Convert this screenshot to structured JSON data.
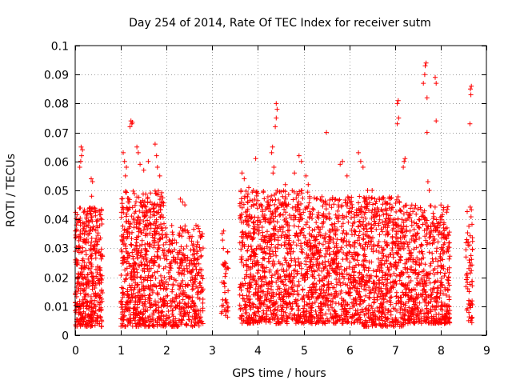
{
  "chart_data": {
    "type": "scatter",
    "title": "Day 254 of 2014, Rate Of TEC Index for receiver sutm",
    "xlabel": "GPS time / hours",
    "ylabel": "ROTI / TECUs",
    "xlim": [
      0,
      9
    ],
    "ylim": [
      0,
      0.1
    ],
    "xticks": [
      0,
      1,
      2,
      3,
      4,
      5,
      6,
      7,
      8,
      9
    ],
    "xtick_labels": [
      "0",
      "1",
      "2",
      "3",
      "4",
      "5",
      "6",
      "7",
      "8",
      "9"
    ],
    "yticks": [
      0,
      0.01,
      0.02,
      0.03,
      0.04,
      0.05,
      0.06,
      0.07,
      0.08,
      0.09,
      0.1
    ],
    "ytick_labels": [
      "0",
      "0.01",
      "0.02",
      "0.03",
      "0.04",
      "0.05",
      "0.06",
      "0.07",
      "0.08",
      "0.09",
      "0.1"
    ],
    "grid": true,
    "legend": false,
    "marker": "+",
    "marker_color": "#ff0000",
    "dense_clusters": [
      {
        "x_range": [
          0.0,
          0.6
        ],
        "y_range": [
          0.003,
          0.045
        ],
        "count": 420
      },
      {
        "x_range": [
          1.0,
          1.95
        ],
        "y_range": [
          0.003,
          0.05
        ],
        "count": 650
      },
      {
        "x_range": [
          1.95,
          2.8
        ],
        "y_range": [
          0.003,
          0.038
        ],
        "count": 380
      },
      {
        "x_range": [
          3.2,
          3.35
        ],
        "y_range": [
          0.006,
          0.036
        ],
        "count": 40
      },
      {
        "x_range": [
          3.6,
          5.1
        ],
        "y_range": [
          0.004,
          0.05
        ],
        "count": 900
      },
      {
        "x_range": [
          5.1,
          6.3
        ],
        "y_range": [
          0.004,
          0.048
        ],
        "count": 700
      },
      {
        "x_range": [
          6.3,
          7.2
        ],
        "y_range": [
          0.003,
          0.048
        ],
        "count": 560
      },
      {
        "x_range": [
          7.2,
          8.2
        ],
        "y_range": [
          0.004,
          0.045
        ],
        "count": 560
      },
      {
        "x_range": [
          8.55,
          8.7
        ],
        "y_range": [
          0.004,
          0.045
        ],
        "count": 60
      }
    ],
    "sparse_points": [
      [
        0.1,
        0.058
      ],
      [
        0.12,
        0.06
      ],
      [
        0.14,
        0.062
      ],
      [
        0.16,
        0.064
      ],
      [
        0.13,
        0.065
      ],
      [
        0.35,
        0.054
      ],
      [
        0.38,
        0.053
      ],
      [
        0.36,
        0.048
      ],
      [
        1.05,
        0.063
      ],
      [
        1.08,
        0.06
      ],
      [
        1.12,
        0.058
      ],
      [
        1.1,
        0.055
      ],
      [
        1.2,
        0.072
      ],
      [
        1.22,
        0.074
      ],
      [
        1.24,
        0.073
      ],
      [
        1.25,
        0.0735
      ],
      [
        1.35,
        0.065
      ],
      [
        1.38,
        0.063
      ],
      [
        1.42,
        0.059
      ],
      [
        1.5,
        0.057
      ],
      [
        1.6,
        0.06
      ],
      [
        1.75,
        0.066
      ],
      [
        1.78,
        0.062
      ],
      [
        1.8,
        0.058
      ],
      [
        1.85,
        0.055
      ],
      [
        2.3,
        0.047
      ],
      [
        2.35,
        0.046
      ],
      [
        2.4,
        0.045
      ],
      [
        3.25,
        0.036
      ],
      [
        3.65,
        0.056
      ],
      [
        3.7,
        0.054
      ],
      [
        3.8,
        0.051
      ],
      [
        3.9,
        0.05
      ],
      [
        3.95,
        0.061
      ],
      [
        4.0,
        0.049
      ],
      [
        4.3,
        0.063
      ],
      [
        4.32,
        0.065
      ],
      [
        4.35,
        0.058
      ],
      [
        4.33,
        0.056
      ],
      [
        4.38,
        0.072
      ],
      [
        4.4,
        0.075
      ],
      [
        4.4,
        0.08
      ],
      [
        4.42,
        0.078
      ],
      [
        4.6,
        0.052
      ],
      [
        4.8,
        0.056
      ],
      [
        4.9,
        0.062
      ],
      [
        4.95,
        0.06
      ],
      [
        5.05,
        0.055
      ],
      [
        5.1,
        0.052
      ],
      [
        5.5,
        0.07
      ],
      [
        5.8,
        0.059
      ],
      [
        5.85,
        0.06
      ],
      [
        5.95,
        0.055
      ],
      [
        6.2,
        0.063
      ],
      [
        6.25,
        0.06
      ],
      [
        6.3,
        0.058
      ],
      [
        6.4,
        0.05
      ],
      [
        6.5,
        0.05
      ],
      [
        7.05,
        0.08
      ],
      [
        7.07,
        0.081
      ],
      [
        7.08,
        0.075
      ],
      [
        7.05,
        0.073
      ],
      [
        7.2,
        0.06
      ],
      [
        7.22,
        0.061
      ],
      [
        7.18,
        0.058
      ],
      [
        7.62,
        0.087
      ],
      [
        7.65,
        0.09
      ],
      [
        7.66,
        0.093
      ],
      [
        7.68,
        0.094
      ],
      [
        7.7,
        0.082
      ],
      [
        7.7,
        0.07
      ],
      [
        7.72,
        0.053
      ],
      [
        7.75,
        0.05
      ],
      [
        7.88,
        0.089
      ],
      [
        7.9,
        0.087
      ],
      [
        7.9,
        0.074
      ],
      [
        8.65,
        0.085
      ],
      [
        8.67,
        0.086
      ],
      [
        8.66,
        0.083
      ],
      [
        8.64,
        0.073
      ]
    ]
  }
}
